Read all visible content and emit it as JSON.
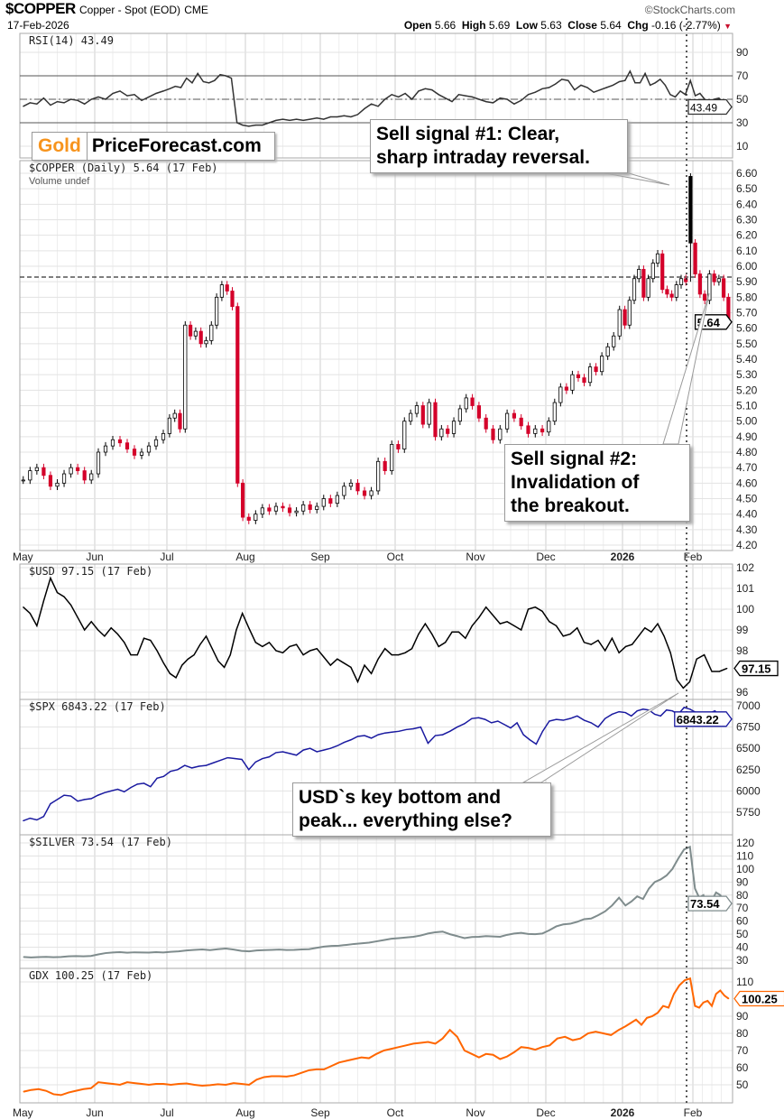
{
  "header": {
    "symbol": "$COPPER",
    "name": "Copper - Spot (EOD)",
    "exchange": "CME",
    "date": "17-Feb-2026",
    "brand": "©StockCharts.com",
    "open_label": "Open",
    "open": "5.66",
    "high_label": "High",
    "high": "5.69",
    "low_label": "Low",
    "low": "5.63",
    "close_label": "Close",
    "close": "5.64",
    "chg_label": "Chg",
    "chg": "-0.16 (-2.77%)",
    "chg_arrow": "▼"
  },
  "logo": {
    "gold": "Gold",
    "rest": "PriceForecast.com"
  },
  "annotations": {
    "sell1": [
      "Sell signal #1: Clear,",
      "sharp intraday reversal."
    ],
    "sell2": [
      "Sell signal #2:",
      "Invalidation of",
      "the breakout."
    ],
    "usd": [
      "USD`s key bottom and",
      "peak... everything else?"
    ]
  },
  "colors": {
    "up": "#000000",
    "down": "#d4002a",
    "usd": "#000000",
    "spx": "#1a1aa0",
    "silver": "#7f8c8d",
    "gdx": "#ff6600",
    "grid": "#e3e3e3"
  },
  "chart_data": [
    {
      "id": "rsi",
      "type": "line",
      "title": "RSI(14) 43.49",
      "last": "43.49",
      "ylim": [
        0,
        100
      ],
      "ticks": [
        90,
        70,
        50,
        30,
        10
      ],
      "reference_lines": [
        70,
        50,
        30
      ],
      "months": [
        [
          44,
          47,
          46,
          51,
          45,
          48,
          47,
          50,
          49,
          46,
          50
        ],
        [
          52,
          50,
          55,
          57,
          53,
          54,
          49,
          52,
          55,
          57
        ],
        [
          59,
          61,
          60,
          68,
          64,
          72,
          65,
          64,
          66,
          71,
          70,
          68,
          30,
          28
        ],
        [
          27,
          28,
          28,
          30,
          32,
          33,
          32,
          33,
          32,
          33,
          34
        ],
        [
          33,
          35,
          35,
          36,
          35,
          37,
          42,
          46,
          44,
          50,
          54
        ],
        [
          52,
          55,
          50,
          57,
          59,
          58,
          54,
          51,
          48,
          54,
          53,
          52
        ],
        [
          50,
          48,
          47,
          51,
          50,
          46,
          49,
          54,
          56,
          59
        ],
        [
          60,
          63,
          67,
          66,
          58,
          62,
          60,
          56,
          58,
          60,
          62,
          65
        ],
        [
          66,
          74,
          64,
          64,
          72,
          62,
          64,
          67,
          62,
          54,
          52,
          57,
          54,
          66
        ],
        [
          53,
          55,
          50,
          48,
          50,
          51,
          47,
          43.49
        ]
      ]
    },
    {
      "id": "copper",
      "type": "candlestick",
      "title": "$COPPER (Daily) 5.64 (17 Feb)",
      "subtitle": "Volume undef",
      "last": "5.64",
      "ylim": [
        4.2,
        6.6
      ],
      "ticks": [
        "6.60",
        "6.50",
        "6.40",
        "6.30",
        "6.20",
        "6.10",
        "6.00",
        "5.90",
        "5.80",
        "5.70",
        "5.60",
        "5.50",
        "5.40",
        "5.30",
        "5.20",
        "5.10",
        "5.00",
        "4.90",
        "4.80",
        "4.70",
        "4.60",
        "4.50",
        "4.40",
        "4.30",
        "4.20"
      ],
      "resistance_line": 5.93,
      "months": [
        [
          4.62,
          4.68,
          4.7,
          4.65,
          4.58,
          4.6,
          4.66,
          4.7,
          4.68,
          4.62,
          4.66
        ],
        [
          4.8,
          4.84,
          4.88,
          4.86,
          4.82,
          4.78,
          4.8,
          4.84,
          4.88,
          4.92
        ],
        [
          5.02,
          5.05,
          4.95,
          5.62,
          5.55,
          5.58,
          5.5,
          5.52,
          5.62,
          5.8,
          5.88,
          5.84,
          5.74,
          4.6,
          4.38
        ],
        [
          4.36,
          4.4,
          4.44,
          4.42,
          4.45,
          4.44,
          4.41,
          4.42,
          4.46,
          4.43,
          4.45
        ],
        [
          4.5,
          4.47,
          4.52,
          4.58,
          4.6,
          4.55,
          4.52,
          4.55,
          4.74,
          4.68,
          4.85
        ],
        [
          4.82,
          5.0,
          5.05,
          5.1,
          4.98,
          5.12,
          4.9,
          4.95,
          4.92,
          5.0,
          5.08,
          5.15,
          5.1
        ],
        [
          5.02,
          4.95,
          4.88,
          4.95,
          5.05,
          5.02,
          4.97,
          4.92,
          4.95,
          4.93
        ],
        [
          5.0,
          5.12,
          5.22,
          5.2,
          5.3,
          5.28,
          5.25,
          5.35,
          5.32,
          5.42,
          5.48,
          5.55,
          5.72
        ],
        [
          5.62,
          5.78,
          5.92,
          5.98,
          5.8,
          5.92,
          6.02,
          6.08,
          5.85,
          5.82,
          5.8,
          5.88,
          5.92,
          5.9,
          [
            6.58,
            6.6,
            5.9,
            6.15
          ]
        ],
        [
          5.95,
          5.82,
          5.78,
          5.95,
          5.9,
          5.92,
          5.8,
          5.64
        ]
      ]
    },
    {
      "id": "usd",
      "type": "line",
      "title": "$USD 97.15 (17 Feb)",
      "last": "97.15",
      "ylim": [
        95.6,
        102.2
      ],
      "ticks": [
        "102",
        "101",
        "100",
        "99",
        "98",
        "96"
      ],
      "months": [
        [
          100.1,
          99.8,
          99.2,
          100.4,
          101.5,
          100.8,
          100.6,
          100.2,
          99.6,
          99.0,
          99.4
        ],
        [
          99.0,
          98.7,
          99.1,
          98.8,
          98.4,
          97.8,
          97.8,
          98.6,
          98.5,
          98.0,
          97.4
        ],
        [
          96.9,
          96.7,
          97.3,
          97.6,
          97.8,
          98.3,
          98.7,
          98.1,
          97.5,
          97.2,
          97.8,
          99.0,
          99.8
        ],
        [
          99.1,
          98.4,
          98.2,
          98.4,
          98.0,
          97.9,
          98.2,
          98.3,
          97.8,
          98.0,
          98.1
        ],
        [
          97.7,
          97.3,
          97.6,
          97.4,
          97.2,
          96.5,
          97.3,
          96.9,
          97.6,
          98.1,
          97.8
        ],
        [
          97.8,
          97.9,
          98.1,
          98.8,
          99.3,
          98.8,
          98.2,
          98.4,
          98.9,
          98.9,
          98.6,
          99.2
        ],
        [
          99.6,
          100.1,
          99.7,
          99.3,
          99.4,
          99.2,
          99.0,
          100.0,
          100.1,
          99.9
        ],
        [
          99.4,
          99.2,
          98.7,
          98.8,
          99.1,
          98.4,
          98.3,
          98.5,
          98.0,
          98.6,
          97.9
        ],
        [
          98.2,
          98.3,
          98.7,
          99.1,
          98.9,
          99.3,
          98.7,
          97.9,
          96.6,
          96.2,
          96.5
        ],
        [
          97.6,
          97.8,
          97.0,
          97.0,
          97.15
        ]
      ]
    },
    {
      "id": "spx",
      "type": "line",
      "title": "$SPX 6843.22 (17 Feb)",
      "last": "6843.22",
      "ylim": [
        5500,
        7050
      ],
      "ticks": [
        "7000",
        "6750",
        "6500",
        "6250",
        "6000",
        "5750"
      ],
      "months": [
        [
          5650,
          5680,
          5660,
          5700,
          5850,
          5900,
          5950,
          5940,
          5880,
          5900,
          5910
        ],
        [
          5950,
          5980,
          6000,
          6020,
          5990,
          6040,
          6080,
          6090,
          6050,
          6150,
          6170
        ],
        [
          6230,
          6250,
          6300,
          6270,
          6290,
          6300,
          6330,
          6360,
          6390,
          6380,
          6370
        ],
        [
          6250,
          6340,
          6380,
          6400,
          6450,
          6460,
          6440,
          6420,
          6480,
          6500,
          6460
        ],
        [
          6480,
          6500,
          6530,
          6570,
          6600,
          6640,
          6650,
          6620,
          6660,
          6680,
          6690
        ],
        [
          6700,
          6720,
          6730,
          6750,
          6560,
          6650,
          6660,
          6700,
          6750,
          6790,
          6850
        ],
        [
          6860,
          6840,
          6800,
          6820,
          6780,
          6740,
          6800,
          6660,
          6600,
          6550,
          6700
        ],
        [
          6820,
          6840,
          6830,
          6850,
          6880,
          6830,
          6800,
          6750,
          6850,
          6900,
          6930
        ],
        [
          6920,
          6880,
          6940,
          6960,
          6950,
          6900,
          6880,
          6950,
          6940,
          6900,
          6980,
          6960
        ],
        [
          6920,
          6880,
          6910,
          6940,
          6840,
          6843.22
        ]
      ]
    },
    {
      "id": "silver",
      "type": "line",
      "title": "$SILVER 73.54 (17 Feb)",
      "last": "73.54",
      "ylim": [
        25,
        125
      ],
      "ticks": [
        "120",
        "110",
        "100",
        "90",
        "80",
        "70",
        "60",
        "50",
        "40",
        "30"
      ],
      "months": [
        [
          32.5,
          32.2,
          32.4,
          32.6,
          32.3,
          32.5,
          33.0,
          33.2,
          33.0,
          33.3
        ],
        [
          34.5,
          35.5,
          36.0,
          36.2,
          35.8,
          36.1,
          36.0,
          35.9,
          36.2,
          36.0
        ],
        [
          36.5,
          36.8,
          37.5,
          38.0,
          38.3,
          37.8,
          38.5,
          39.0,
          38.2,
          37.2
        ],
        [
          36.8,
          37.5,
          37.8,
          38.0,
          38.2,
          37.9,
          38.0,
          38.3,
          38.5,
          39.5
        ],
        [
          40.5,
          41.0,
          41.2,
          41.8,
          42.5,
          43.0,
          43.5,
          44.5,
          45.5,
          46.5
        ],
        [
          47.0,
          47.5,
          48.0,
          49.0,
          50.5,
          51.5,
          52.0,
          50.0,
          48.5,
          47.0,
          47.8
        ],
        [
          48.0,
          48.5,
          48.3,
          48.0,
          49.5,
          50.5,
          51.0,
          50.2,
          50.0,
          50.5
        ],
        [
          53.0,
          56.0,
          57.5,
          58.0,
          59.5,
          61.5,
          62.0,
          64.5,
          67.5,
          72.0,
          78.0
        ],
        [
          72.0,
          75.0,
          79.0,
          77.0,
          85.0,
          90.0,
          92.0,
          95.0,
          100.0,
          108.0,
          115.0,
          117.0
        ],
        [
          85.0,
          78.0,
          80.0,
          70.0,
          76.0,
          82.0,
          80.0,
          75.0,
          73.54
        ]
      ]
    },
    {
      "id": "gdx",
      "type": "line",
      "title": "GDX 100.25 (17 Feb)",
      "last": "100.25",
      "ylim": [
        42,
        118
      ],
      "ticks": [
        "110",
        "90",
        "80",
        "70",
        "60",
        "50"
      ],
      "months": [
        [
          46.0,
          47.0,
          47.5,
          46.5,
          44.5,
          44.0,
          45.5,
          46.5,
          47.5,
          48.0
        ],
        [
          51.5,
          51.0,
          50.5,
          50.0,
          51.5,
          51.0,
          50.5,
          50.0,
          50.5,
          50.5
        ],
        [
          50.0,
          50.5,
          50.8,
          50.0,
          49.5,
          49.8,
          50.3,
          50.0,
          51.0,
          50.5
        ],
        [
          50.0,
          53.0,
          54.5,
          55.0,
          55.0,
          54.8,
          55.5,
          57.0,
          58.5,
          59.0
        ],
        [
          59.0,
          61.0,
          63.0,
          64.0,
          65.0,
          66.0,
          65.5,
          68.0,
          70.0,
          71.0
        ],
        [
          72.0,
          73.0,
          74.0,
          74.5,
          75.0,
          74.0,
          77.0,
          82.0,
          78.0,
          70.0,
          68.0
        ],
        [
          66.0,
          68.0,
          67.5,
          65.0,
          66.5,
          69.0,
          72.0,
          71.5,
          70.5,
          72.0
        ],
        [
          73.0,
          77.0,
          78.0,
          76.0,
          77.0,
          80.0,
          81.0,
          80.0,
          79.0,
          82.0
        ],
        [
          84.0,
          86.0,
          88.0,
          85.0,
          89.0,
          90.0,
          92.0,
          96.0,
          95.0,
          103.0,
          108.0,
          111.0,
          112.0
        ],
        [
          96.0,
          95.0,
          98.0,
          99.0,
          96.0,
          103.0,
          105.0,
          102.0,
          100.25
        ]
      ]
    }
  ],
  "x_axis": {
    "months": [
      "May",
      "Jun",
      "Jul",
      "Aug",
      "Sep",
      "Oct",
      "Nov",
      "Dec",
      "2026",
      "Feb"
    ]
  }
}
